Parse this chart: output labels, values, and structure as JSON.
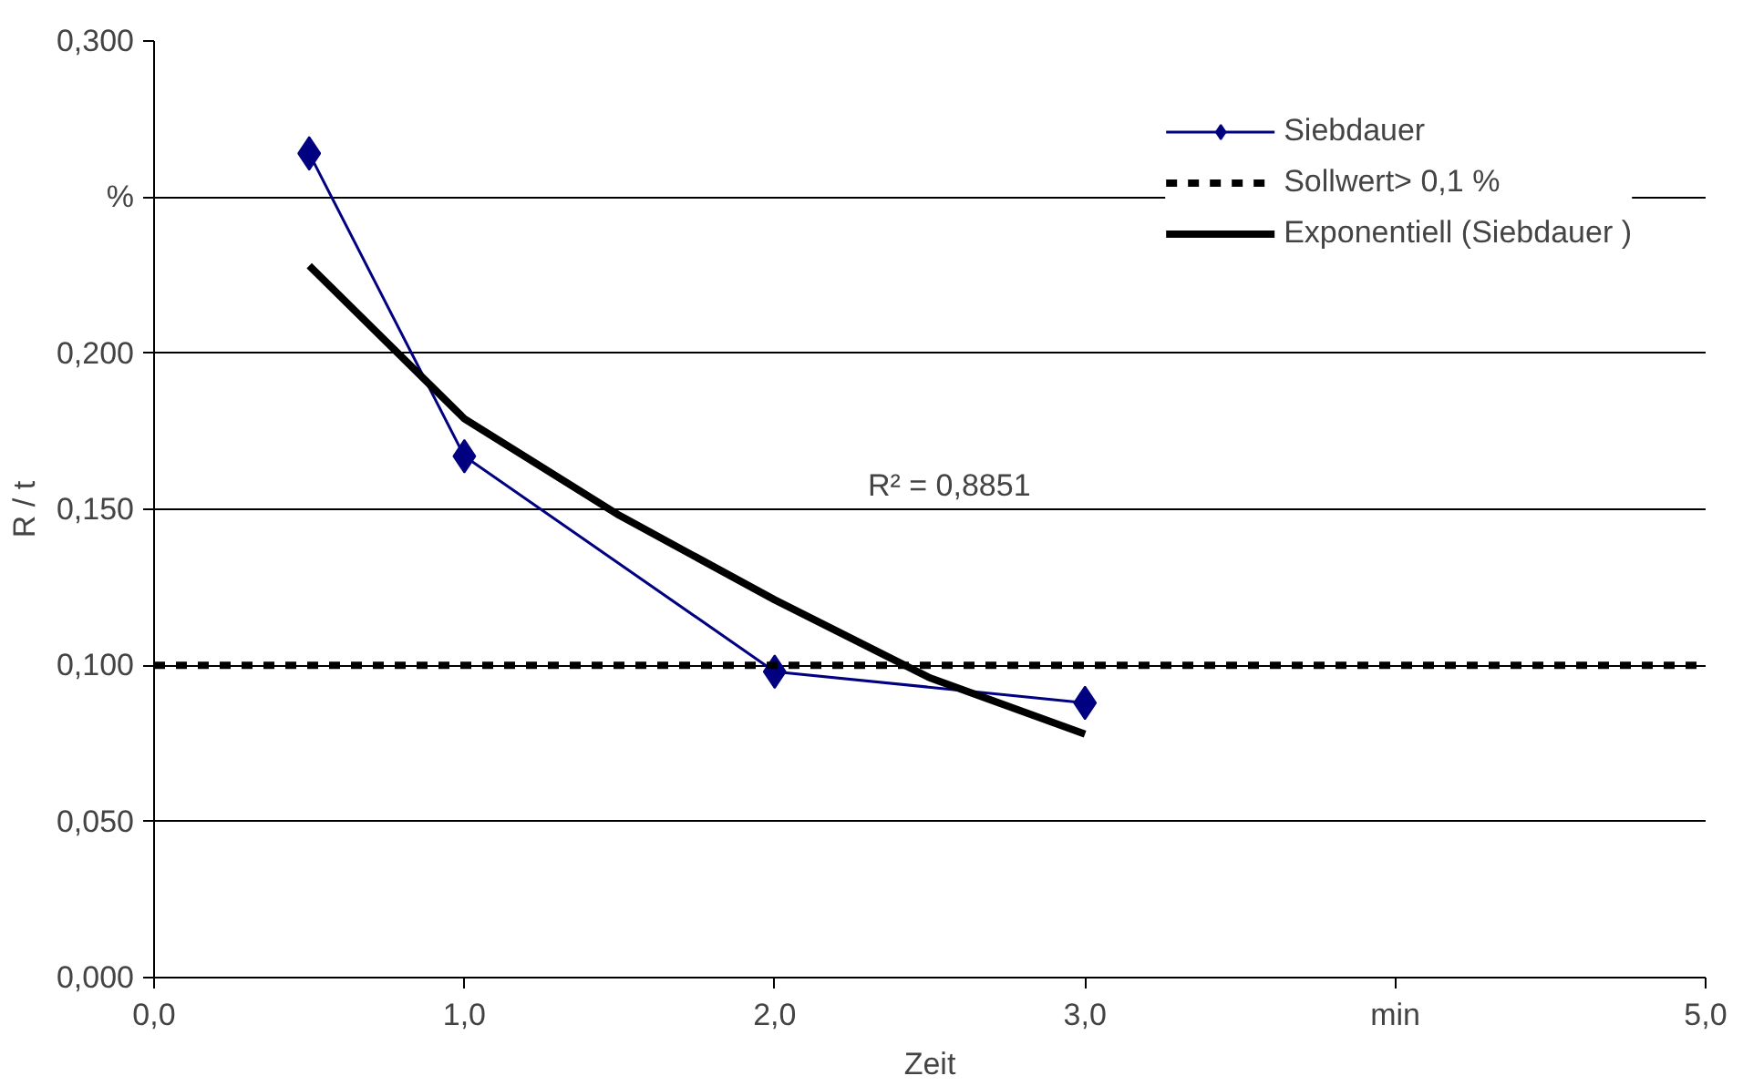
{
  "chart_data": {
    "type": "line",
    "xlabel": "Zeit",
    "ylabel": "R / t",
    "x": [
      0.5,
      1,
      2,
      3
    ],
    "series": [
      {
        "name": "Siebdauer",
        "color": "#000080",
        "values": [
          0.264,
          0.167,
          0.098,
          0.088
        ],
        "marker": "diamond",
        "line_style": "solid"
      },
      {
        "name": "Exponentiell (Siebdauer )",
        "color": "#000000",
        "type": "line",
        "x": [
          0.5,
          1,
          1.5,
          2,
          2.5,
          3
        ],
        "values": [
          0.228,
          0.179,
          0.148,
          0.121,
          0.096,
          0.078
        ],
        "marker": "none",
        "line_style": "solid"
      }
    ],
    "ref_lines": [
      {
        "axis": "y",
        "value": 0.1,
        "label": "Sollwert> 0,1 %",
        "color": "#000000",
        "line_style": "dashed"
      }
    ],
    "annotations": [
      "R² = 0,8851"
    ],
    "xlim": [
      0,
      5
    ],
    "xticks": [
      {
        "value": 0,
        "label": "0,0"
      },
      {
        "value": 1,
        "label": "1,0"
      },
      {
        "value": 2,
        "label": "2,0"
      },
      {
        "value": 3,
        "label": "3,0"
      },
      {
        "value": 4,
        "label": "min"
      },
      {
        "value": 5,
        "label": "5,0"
      }
    ],
    "ylim": [
      0,
      0.3
    ],
    "yticks": [
      {
        "value": 0,
        "label": "0,000"
      },
      {
        "value": 0.05,
        "label": "0,050"
      },
      {
        "value": 0.1,
        "label": "0,100"
      },
      {
        "value": 0.15,
        "label": "0,150"
      },
      {
        "value": 0.2,
        "label": "0,200"
      },
      {
        "value": 0.25,
        "label": "%"
      },
      {
        "value": 0.3,
        "label": "0,300"
      }
    ],
    "grid": "y",
    "legend": "top right"
  }
}
